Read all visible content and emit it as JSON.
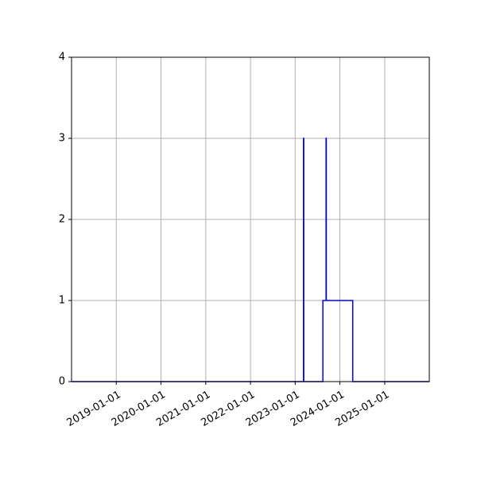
{
  "chart_data": {
    "type": "line",
    "title": "",
    "xlabel": "",
    "ylabel": "",
    "x_axis": "date",
    "xlim": [
      "2018-01-01",
      "2025-12-31"
    ],
    "ylim": [
      0,
      4
    ],
    "grid": true,
    "legend": "none",
    "x_ticks": [
      "2019-01-01",
      "2020-01-01",
      "2021-01-01",
      "2022-01-01",
      "2023-01-01",
      "2024-01-01",
      "2025-01-01"
    ],
    "y_ticks": [
      0,
      1,
      2,
      3,
      4
    ],
    "series": [
      {
        "color": "#0000ff",
        "points": [
          {
            "x": "2018-01-01",
            "y": 0
          },
          {
            "x": "2023-03-10",
            "y": 0
          },
          {
            "x": "2023-03-10",
            "y": 3
          },
          {
            "x": "2023-03-12",
            "y": 3
          },
          {
            "x": "2023-03-12",
            "y": 0
          },
          {
            "x": "2023-08-15",
            "y": 0
          },
          {
            "x": "2023-08-15",
            "y": 1
          },
          {
            "x": "2023-09-10",
            "y": 1
          },
          {
            "x": "2023-09-10",
            "y": 3
          },
          {
            "x": "2023-09-12",
            "y": 3
          },
          {
            "x": "2023-09-12",
            "y": 1
          },
          {
            "x": "2024-04-15",
            "y": 1
          },
          {
            "x": "2024-04-15",
            "y": 0
          },
          {
            "x": "2025-12-31",
            "y": 0
          }
        ]
      }
    ]
  }
}
